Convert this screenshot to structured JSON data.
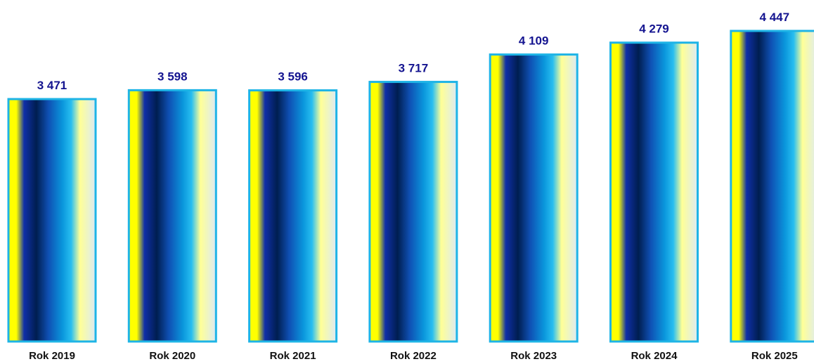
{
  "chart_data": {
    "type": "bar",
    "categories": [
      "Rok 2019",
      "Rok 2020",
      "Rok 2021",
      "Rok 2022",
      "Rok 2023",
      "Rok 2024",
      "Rok 2025"
    ],
    "values": [
      3471,
      3598,
      3596,
      3717,
      4109,
      4279,
      4447
    ],
    "data_labels": [
      "3 471",
      "3 598",
      "3 596",
      "3 717",
      "4 109",
      "4 279",
      "4 447"
    ],
    "title": "",
    "xlabel": "",
    "ylabel": "",
    "ylim": [
      0,
      4447
    ],
    "grid": false,
    "legend": "none",
    "colors": {
      "bar_border": "#1eb4e6",
      "value_label": "#141490",
      "category_label": "#111111",
      "gradient_stops": [
        "#ffff00",
        "#ffff00",
        "#0f2fa8",
        "#001e50",
        "#0f50b4",
        "#0a96dc",
        "#28bef0",
        "#ffff96",
        "#dceaf5"
      ]
    }
  }
}
